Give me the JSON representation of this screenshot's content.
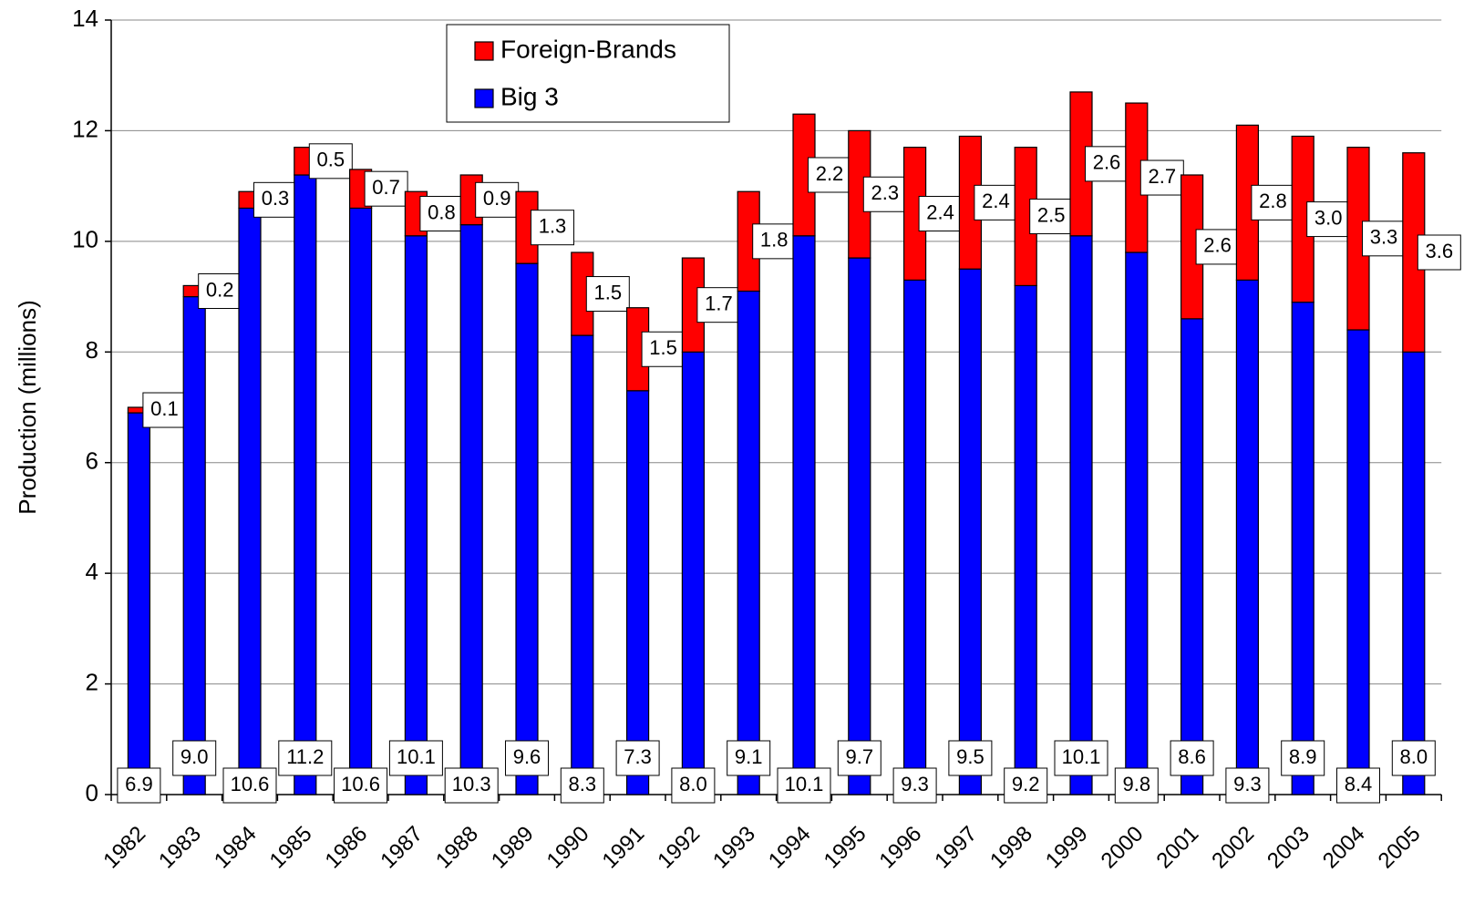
{
  "chart_data": {
    "type": "stacked-bar",
    "y_label": "Production (millions)",
    "categories": [
      "1982",
      "1983",
      "1984",
      "1985",
      "1986",
      "1987",
      "1988",
      "1989",
      "1990",
      "1991",
      "1992",
      "1993",
      "1994",
      "1995",
      "1996",
      "1997",
      "1998",
      "1999",
      "2000",
      "2001",
      "2002",
      "2003",
      "2004",
      "2005"
    ],
    "series": [
      {
        "name": "Big 3",
        "color": "#0000ff",
        "values": [
          6.9,
          9.0,
          10.6,
          11.2,
          10.6,
          10.1,
          10.3,
          9.6,
          8.3,
          7.3,
          8.0,
          9.1,
          10.1,
          9.7,
          9.3,
          9.5,
          9.2,
          10.1,
          9.8,
          8.6,
          9.3,
          8.9,
          8.4,
          8.0
        ],
        "value_labels": [
          "6.9",
          "9.0",
          "10.6",
          "11.2",
          "10.6",
          "10.1",
          "10.3",
          "9.6",
          "8.3",
          "7.3",
          "8.0",
          "9.1",
          "10.1",
          "9.7",
          "9.3",
          "9.5",
          "9.2",
          "10.1",
          "9.8",
          "8.6",
          "9.3",
          "8.9",
          "8.4",
          "8.0"
        ]
      },
      {
        "name": "Foreign-Brands",
        "color": "#ff0000",
        "values": [
          0.1,
          0.2,
          0.3,
          0.5,
          0.7,
          0.8,
          0.9,
          1.3,
          1.5,
          1.5,
          1.7,
          1.8,
          2.2,
          2.3,
          2.4,
          2.4,
          2.5,
          2.6,
          2.7,
          2.6,
          2.8,
          3.0,
          3.3,
          3.6
        ],
        "value_labels": [
          "0.1",
          "0.2",
          "0.3",
          "0.5",
          "0.7",
          "0.8",
          "0.9",
          "1.3",
          "1.5",
          "1.5",
          "1.7",
          "1.8",
          "2.2",
          "2.3",
          "2.4",
          "2.4",
          "2.5",
          "2.6",
          "2.7",
          "2.6",
          "2.8",
          "3.0",
          "3.3",
          "3.6"
        ]
      }
    ],
    "ylim": [
      0,
      14
    ],
    "yticks": [
      0,
      2,
      4,
      6,
      8,
      10,
      12,
      14
    ],
    "grid": true,
    "legend": "top"
  }
}
